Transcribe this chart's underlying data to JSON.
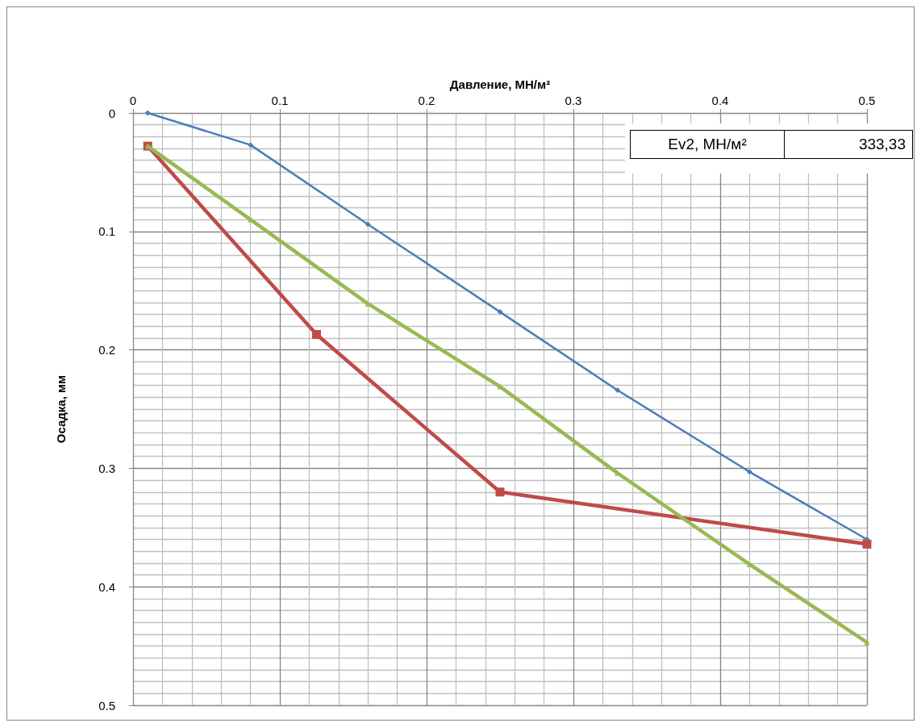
{
  "chart_data": {
    "type": "line",
    "xlabel": "Давление, МН/м²",
    "ylabel": "Осадка, мм",
    "xlim": [
      0,
      0.5
    ],
    "xticks": [
      0,
      0.1,
      0.2,
      0.3,
      0.4,
      0.5
    ],
    "ylim": [
      0.5,
      0
    ],
    "yticks": [
      0,
      0.1,
      0.2,
      0.3,
      0.4,
      0.5
    ],
    "grid": true,
    "annotations": [
      "Ev2, МН/м²",
      "333,33"
    ],
    "series": [
      {
        "color": "#4a7ebb",
        "marker": "diamond",
        "x": [
          0.01,
          0.08,
          0.16,
          0.25,
          0.33,
          0.42,
          0.5
        ],
        "values": [
          0,
          0.027,
          0.094,
          0.168,
          0.234,
          0.303,
          0.36
        ]
      },
      {
        "color": "#be4b48",
        "marker": "square",
        "x": [
          0.01,
          0.125,
          0.25,
          0.5
        ],
        "values": [
          0.028,
          0.187,
          0.32,
          0.364
        ]
      },
      {
        "color": "#98b954",
        "marker": "triangle",
        "x": [
          0.01,
          0.08,
          0.16,
          0.25,
          0.33,
          0.42,
          0.5
        ],
        "values": [
          0.028,
          0.09,
          0.161,
          0.231,
          0.304,
          0.381,
          0.447
        ]
      }
    ]
  }
}
